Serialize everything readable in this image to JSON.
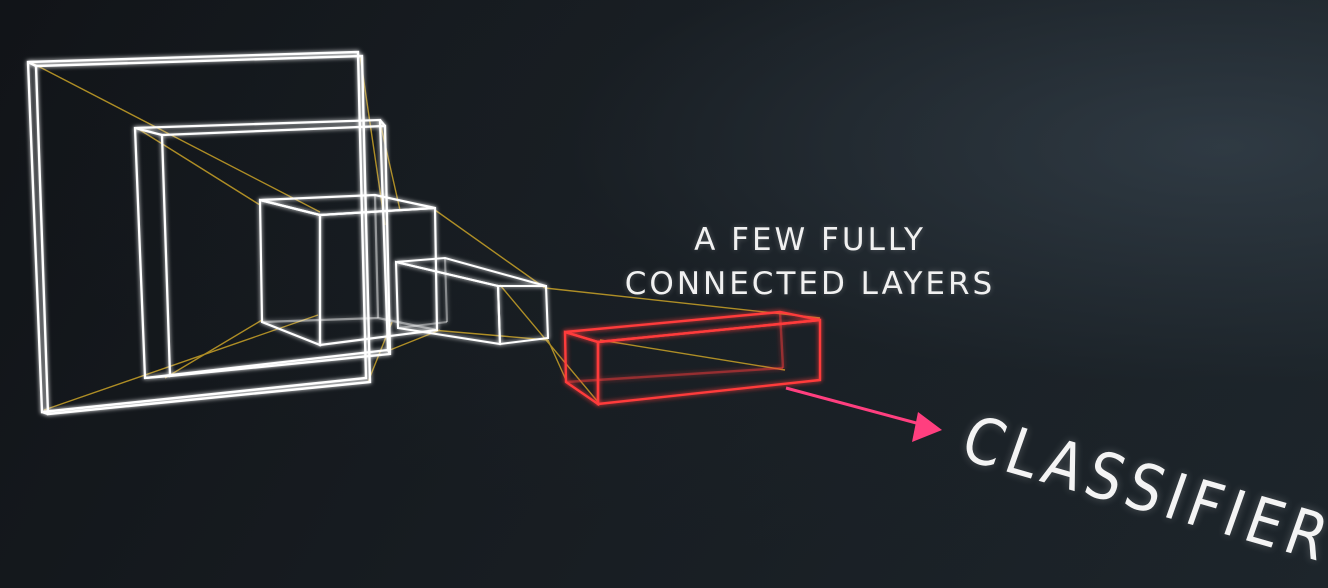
{
  "diagram": {
    "caption_line1": "A FEW FULLY",
    "caption_line2": "CONNECTED LAYERS",
    "classifier_label": "CLASSIFIER",
    "colors": {
      "background": "#15191d",
      "conv_layer_stroke": "#ffffff",
      "connector_stroke": "#c9a227",
      "fc_layer_stroke": "#ff3b3b",
      "arrow": "#ff3f7f"
    }
  }
}
